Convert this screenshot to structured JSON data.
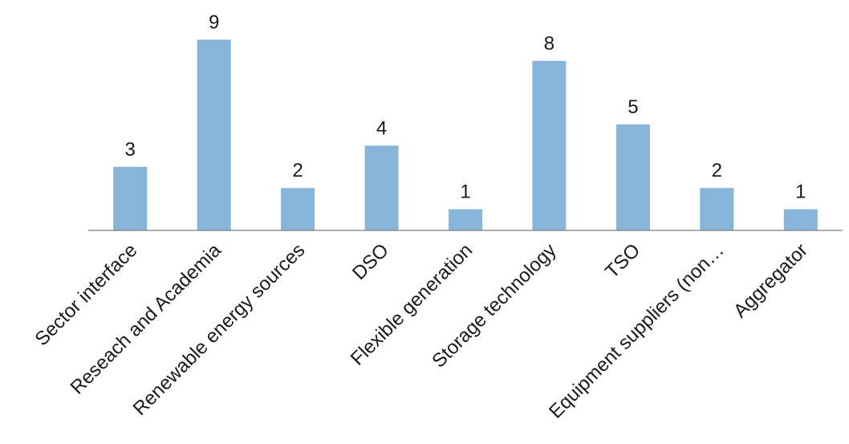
{
  "chart_data": {
    "type": "bar",
    "title": "",
    "xlabel": "",
    "ylabel": "",
    "categories": [
      "Sector interface",
      "Reseach and Academia",
      "Renewable energy sources",
      "DSO",
      "Flexible generation",
      "Storage technology",
      "TSO",
      "Equipment suppliers (non…",
      "Aggregator"
    ],
    "values": [
      3,
      9,
      2,
      4,
      1,
      8,
      5,
      2,
      1
    ],
    "ylim": [
      0,
      10
    ],
    "grid": false,
    "legend": "none",
    "data_labels": true,
    "bar_color": "#86b5d9",
    "axis_color": "#7f7f7f"
  }
}
